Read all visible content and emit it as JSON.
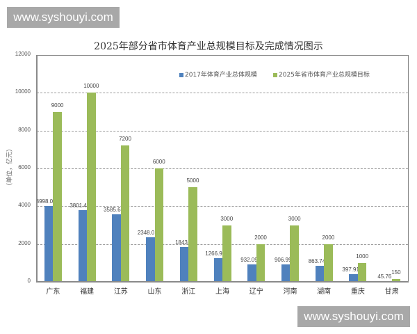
{
  "watermark": {
    "top_text": "www.syshouyi.com",
    "bottom_text": "www.syshouyi.com"
  },
  "colors": {
    "series_2017": "#4f81bd",
    "series_2025": "#9bbb59",
    "watermark_bg": "#a8a8a8"
  },
  "chart_data": {
    "type": "bar",
    "title": "2025年部分省市体育产业总规模目标及完成情况图示",
    "xlabel": "",
    "ylabel": "（单位，亿元）",
    "ylim": [
      0,
      12000
    ],
    "yticks": [
      "0",
      "2000",
      "4000",
      "6000",
      "8000",
      "10000",
      "12000"
    ],
    "grid": true,
    "legend_position": "top-right-inside",
    "categories": [
      "广东",
      "福建",
      "江苏",
      "山东",
      "浙江",
      "上海",
      "辽宁",
      "河南",
      "湖南",
      "重庆",
      "甘肃"
    ],
    "series": [
      {
        "name": "2017年体育产业总体规模",
        "values": [
          3998.03,
          3801.41,
          3585.64,
          2348.01,
          1843,
          1266.93,
          932.09,
          906.99,
          863.74,
          397.91,
          45.76
        ],
        "labels": [
          "3998.03",
          "3801.41",
          "3585.64",
          "2348.01",
          "1843",
          "1266.93",
          "932.09",
          "906.99",
          "863.74",
          "397.91",
          "45.76"
        ]
      },
      {
        "name": "2025年省市体育产业总规模目标",
        "values": [
          9000,
          10000,
          7200,
          6000,
          5000,
          3000,
          2000,
          3000,
          2000,
          1000,
          150
        ],
        "labels": [
          "9000",
          "10000",
          "7200",
          "6000",
          "5000",
          "3000",
          "2000",
          "3000",
          "2000",
          "1000",
          "150"
        ]
      }
    ]
  }
}
